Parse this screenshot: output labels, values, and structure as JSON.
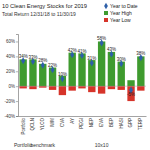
{
  "chart_data": {
    "type": "bar",
    "title": "10 Clean Energy Stocks for 2019",
    "subtitle": "Total Return 12/31/18 to 11/30/19",
    "categories": [
      "Portfolio",
      "QCLN",
      "YLCO",
      "IWM",
      "CVA",
      "AY",
      "PEGI",
      "NEP",
      "EVA",
      "BEP",
      "HASI",
      "GPP",
      "TERP"
    ],
    "groups": [
      "Portfolio",
      "benchmark",
      "benchmark",
      "benchmark",
      "10x10",
      "10x10",
      "10x10",
      "10x10",
      "10x10",
      "10x10",
      "10x10",
      "10x10",
      "10x10"
    ],
    "series": [
      {
        "name": "Year to Date",
        "type": "scatter",
        "marker": "diamond",
        "color": "#2e5fa8",
        "values": [
          34,
          33,
          28,
          22,
          10,
          42,
          41,
          31,
          58,
          43,
          30,
          -5,
          38
        ],
        "value_labels": [
          "34%",
          "33%",
          "28%",
          "22%",
          "10%",
          "42%",
          "41%",
          "31%",
          "58%",
          "43%",
          "30%",
          "-5%",
          "38%"
        ]
      },
      {
        "name": "Year High",
        "type": "bar",
        "color": "#3f9b2f",
        "values": [
          36,
          36,
          30,
          25,
          14,
          45,
          44,
          35,
          60,
          46,
          33,
          8,
          40
        ]
      },
      {
        "name": "Year Low",
        "type": "bar",
        "color": "#d6342a",
        "values": [
          -3,
          -4,
          -2,
          -5,
          -12,
          -6,
          -3,
          -8,
          -10,
          -4,
          -5,
          -20,
          -6
        ]
      }
    ],
    "ylim": [
      -40,
      70
    ],
    "yticks": [
      {
        "value": -40,
        "label": "-40%"
      },
      {
        "value": -20,
        "label": "-20%"
      },
      {
        "value": 0,
        "label": "0%"
      },
      {
        "value": 20,
        "label": "20%"
      },
      {
        "value": 40,
        "label": "40%"
      },
      {
        "value": 60,
        "label": "60%"
      }
    ],
    "legend": "top right",
    "data_labels": true,
    "grid": false
  }
}
